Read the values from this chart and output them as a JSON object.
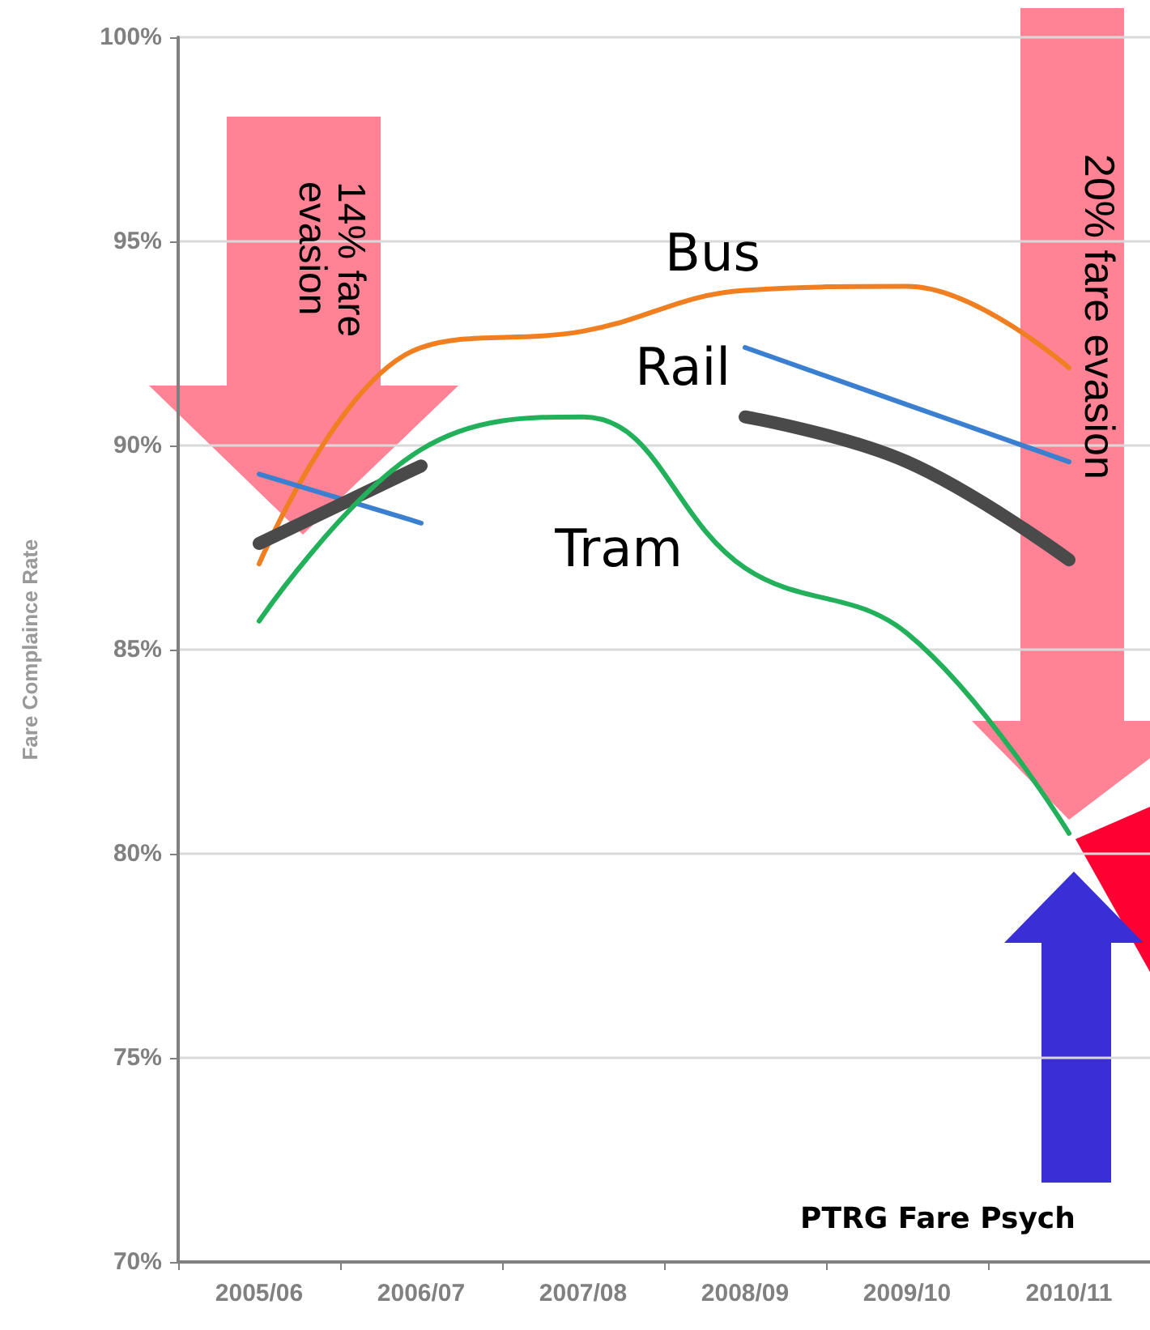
{
  "chart_data": {
    "type": "line",
    "ylabel": "Fare Complaince Rate",
    "categories": [
      "2005/06",
      "2006/07",
      "2007/08",
      "2008/09",
      "2009/10",
      "2010/11"
    ],
    "series": [
      {
        "name": "Bus",
        "color": "#f07f22",
        "values": [
          87.1,
          92.4,
          92.8,
          93.8,
          93.9,
          91.9
        ]
      },
      {
        "name": "Rail",
        "color": "#3a7fd0",
        "values": [
          89.3,
          88.1,
          null,
          92.4,
          91.0,
          89.6
        ]
      },
      {
        "color": "#4a4a4a",
        "values": [
          87.6,
          89.5,
          null,
          90.7,
          89.6,
          87.2
        ]
      },
      {
        "name": "Tram",
        "color": "#22b05a",
        "values": [
          85.7,
          89.9,
          90.7,
          87.0,
          85.4,
          80.5
        ]
      }
    ],
    "ylim": [
      70,
      100
    ],
    "yticks": [
      {
        "value": 70,
        "label": "70%"
      },
      {
        "value": 75,
        "label": "75%"
      },
      {
        "value": 80,
        "label": "80%"
      },
      {
        "value": 85,
        "label": "85%"
      },
      {
        "value": 90,
        "label": "90%"
      },
      {
        "value": 95,
        "label": "95%"
      },
      {
        "value": 100,
        "label": "100%"
      }
    ],
    "grid": "y",
    "marker": "none",
    "line_style": "solid",
    "annotations": [
      "14% fare evasion",
      "20% fare evasion",
      "PTRG Fare Psych"
    ]
  }
}
